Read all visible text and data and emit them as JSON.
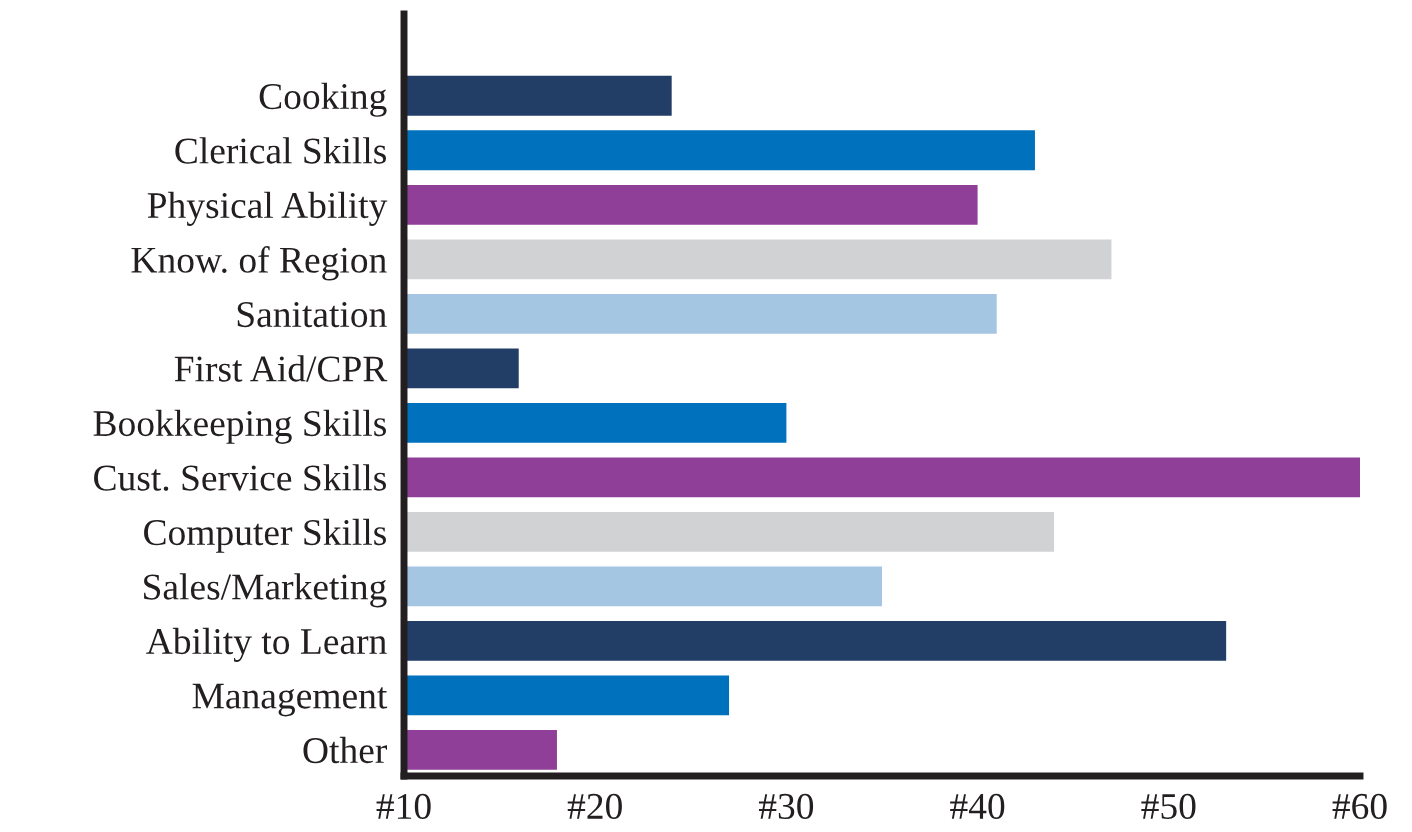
{
  "chart_data": {
    "type": "bar",
    "orientation": "horizontal",
    "categories": [
      "Cooking",
      "Clerical Skills",
      "Physical Ability",
      "Know. of Region",
      "Sanitation",
      "First Aid/CPR",
      "Bookkeeping Skills",
      "Cust. Service Skills",
      "Computer Skills",
      "Sales/Marketing",
      "Ability to Learn",
      "Management",
      "Other"
    ],
    "values": [
      24,
      43,
      40,
      47,
      41,
      16,
      30,
      60,
      44,
      35,
      53,
      27,
      18
    ],
    "colors": [
      "#223e66",
      "#0071bd",
      "#8f3f97",
      "#d1d2d4",
      "#a4c6e2",
      "#223e66",
      "#0071bd",
      "#8f3f97",
      "#d1d2d4",
      "#a4c6e2",
      "#223e66",
      "#0071bd",
      "#8f3f97"
    ],
    "xlim": [
      10,
      60
    ],
    "xticks": [
      {
        "value": 10,
        "label": "#10"
      },
      {
        "value": 20,
        "label": "#20"
      },
      {
        "value": 30,
        "label": "#30"
      },
      {
        "value": 40,
        "label": "#40"
      },
      {
        "value": 50,
        "label": "#50"
      },
      {
        "value": 60,
        "label": "#60"
      }
    ],
    "grid": false,
    "legend": false
  }
}
